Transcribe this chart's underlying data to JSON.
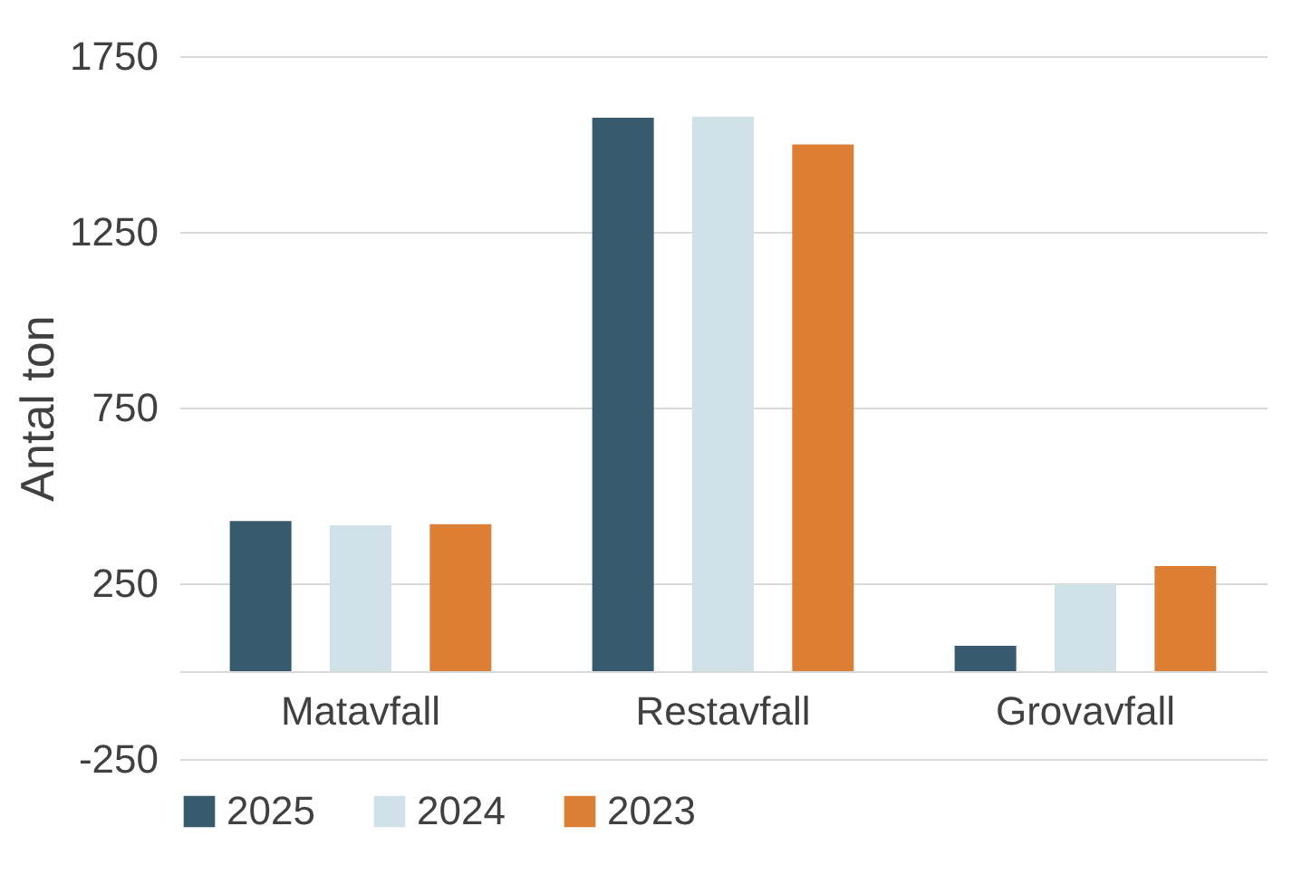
{
  "chart_data": {
    "type": "bar",
    "ylabel": "Antal ton",
    "categories": [
      "Matavfall",
      "Restavfall",
      "Grovavfall"
    ],
    "series": [
      {
        "name": "2025",
        "color": "#375a6e",
        "values": [
          427,
          1575,
          72
        ]
      },
      {
        "name": "2024",
        "color": "#d1e1e8",
        "values": [
          415,
          1578,
          248
        ]
      },
      {
        "name": "2023",
        "color": "#dc7f35",
        "values": [
          418,
          1499,
          299
        ]
      }
    ],
    "ylim": [
      -250,
      1750
    ],
    "yticks": [
      -250,
      250,
      750,
      1250,
      1750
    ],
    "grid": "y",
    "legend": "bottom"
  }
}
